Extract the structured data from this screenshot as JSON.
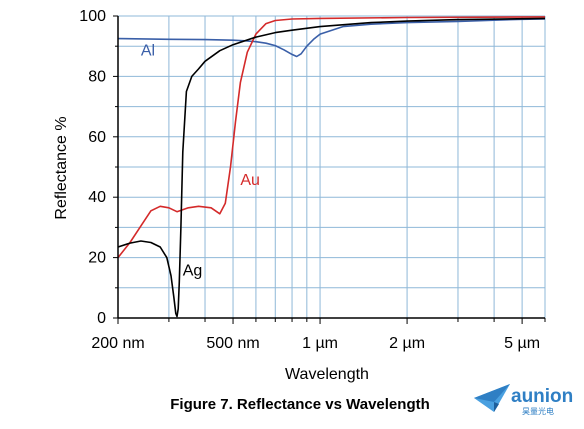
{
  "chart_data": {
    "type": "line",
    "title": "",
    "xlabel": "Wavelength",
    "ylabel": "Reflectance %",
    "x_scale": "log",
    "xlim_nm": [
      200,
      6000
    ],
    "ylim": [
      0,
      100
    ],
    "y_ticks": [
      0,
      20,
      40,
      60,
      80,
      100
    ],
    "y_tick_labels": [
      "0",
      "20",
      "40",
      "60",
      "80",
      "100"
    ],
    "x_ticks_nm": [
      200,
      500,
      1000,
      2000,
      5000
    ],
    "x_tick_labels": [
      "200 nm",
      "500 nm",
      "1 µm",
      "2 µm",
      "5 µm"
    ],
    "x_grid_nm": [
      200,
      300,
      400,
      500,
      600,
      700,
      800,
      900,
      1000,
      2000,
      3000,
      4000,
      5000,
      6000
    ],
    "y_grid": [
      0,
      10,
      20,
      30,
      40,
      50,
      60,
      70,
      80,
      90,
      100
    ],
    "grid": true,
    "colors": {
      "grid": "#8fb8d8",
      "axis": "#000000",
      "Al": "#3a5fa8",
      "Au": "#d42a2a",
      "Ag": "#000000"
    },
    "series": [
      {
        "name": "Al",
        "label_anchor": {
          "x_nm": 240,
          "y": 87
        },
        "points": [
          [
            200,
            92.5
          ],
          [
            300,
            92.3
          ],
          [
            400,
            92.2
          ],
          [
            500,
            92.0
          ],
          [
            550,
            91.8
          ],
          [
            600,
            91.5
          ],
          [
            650,
            91.0
          ],
          [
            700,
            90.2
          ],
          [
            750,
            88.8
          ],
          [
            800,
            87.3
          ],
          [
            830,
            86.6
          ],
          [
            860,
            87.5
          ],
          [
            900,
            90.0
          ],
          [
            950,
            92.3
          ],
          [
            1000,
            94.0
          ],
          [
            1200,
            96.5
          ],
          [
            1500,
            97.3
          ],
          [
            2000,
            97.8
          ],
          [
            3000,
            98.2
          ],
          [
            4000,
            98.6
          ],
          [
            5000,
            98.9
          ],
          [
            6000,
            99.0
          ]
        ]
      },
      {
        "name": "Au",
        "label_anchor": {
          "x_nm": 530,
          "y": 44
        },
        "points": [
          [
            200,
            20.0
          ],
          [
            220,
            25.0
          ],
          [
            240,
            30.5
          ],
          [
            260,
            35.5
          ],
          [
            280,
            37.0
          ],
          [
            300,
            36.5
          ],
          [
            320,
            35.2
          ],
          [
            350,
            36.5
          ],
          [
            380,
            37.0
          ],
          [
            420,
            36.5
          ],
          [
            450,
            34.5
          ],
          [
            470,
            38.0
          ],
          [
            490,
            50.0
          ],
          [
            510,
            65.0
          ],
          [
            530,
            78.0
          ],
          [
            560,
            88.0
          ],
          [
            600,
            94.0
          ],
          [
            650,
            97.5
          ],
          [
            700,
            98.5
          ],
          [
            800,
            99.0
          ],
          [
            1000,
            99.2
          ],
          [
            2000,
            99.5
          ],
          [
            6000,
            99.7
          ]
        ]
      },
      {
        "name": "Ag",
        "label_anchor": {
          "x_nm": 335,
          "y": 14
        },
        "points": [
          [
            200,
            23.5
          ],
          [
            220,
            24.8
          ],
          [
            240,
            25.5
          ],
          [
            260,
            25.0
          ],
          [
            280,
            23.5
          ],
          [
            295,
            20.0
          ],
          [
            305,
            14.0
          ],
          [
            312,
            7.0
          ],
          [
            317,
            1.5
          ],
          [
            320,
            0.5
          ],
          [
            323,
            3.0
          ],
          [
            326,
            12.0
          ],
          [
            330,
            30.0
          ],
          [
            335,
            55.0
          ],
          [
            345,
            75.0
          ],
          [
            360,
            80.0
          ],
          [
            380,
            82.5
          ],
          [
            400,
            85.0
          ],
          [
            450,
            88.5
          ],
          [
            500,
            90.5
          ],
          [
            600,
            93.0
          ],
          [
            700,
            94.5
          ],
          [
            800,
            95.3
          ],
          [
            1000,
            96.5
          ],
          [
            1500,
            97.8
          ],
          [
            2000,
            98.3
          ],
          [
            3000,
            98.8
          ],
          [
            6000,
            99.2
          ]
        ]
      }
    ],
    "caption": "Figure 7. Reflectance vs Wavelength"
  },
  "logo": {
    "name": "aunion",
    "subtext": "昊量光电"
  }
}
